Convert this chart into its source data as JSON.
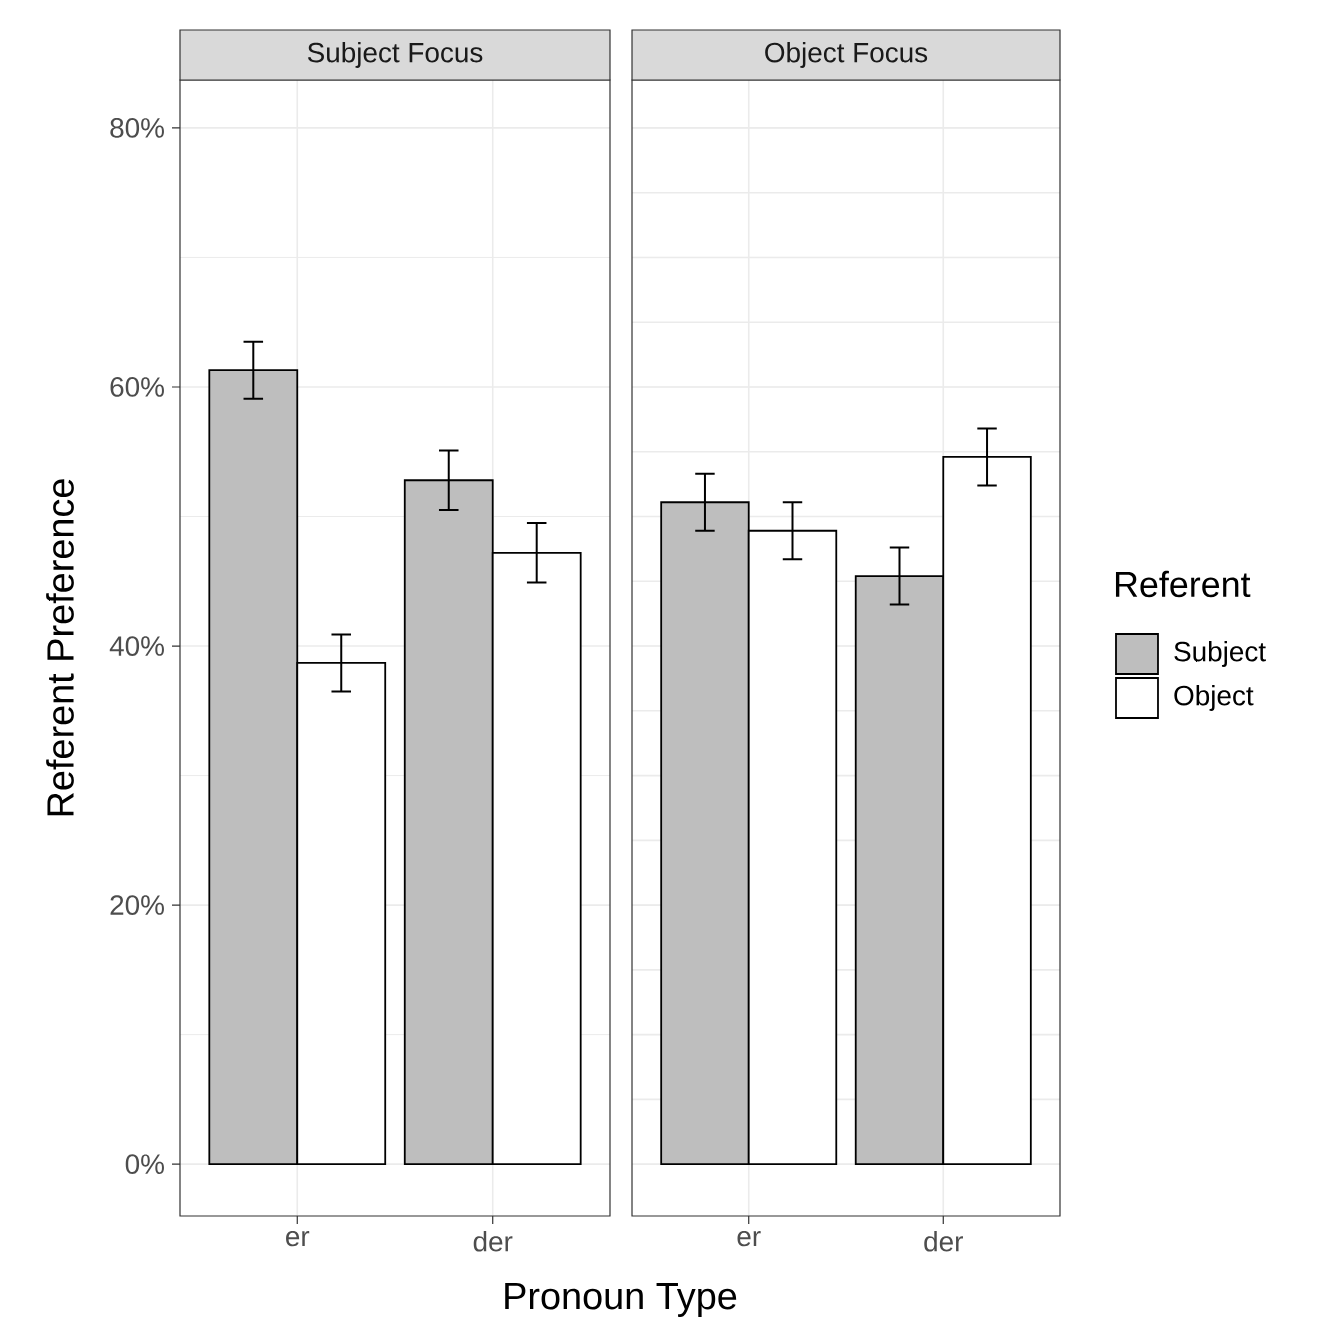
{
  "chart_data": [
    {
      "type": "bar",
      "title": "Subject Focus",
      "xlabel": "Pronoun Type",
      "ylabel": "Referent Preference",
      "legend_title": "Referent",
      "legend": "right",
      "grid": true,
      "categories": [
        "er",
        "der"
      ],
      "ylim": [
        -4,
        83.7
      ],
      "yticks": [
        {
          "value": 0,
          "label": "0%"
        },
        {
          "value": 10,
          "label": null
        },
        {
          "value": 20,
          "label": "20%"
        },
        {
          "value": 30,
          "label": null
        },
        {
          "value": 40,
          "label": "40%"
        },
        {
          "value": 50,
          "label": null
        },
        {
          "value": 60,
          "label": "60%"
        },
        {
          "value": 70,
          "label": null
        },
        {
          "value": 80,
          "label": "80%"
        }
      ],
      "series": [
        {
          "name": "Subject",
          "color": "#bebebe",
          "values": [
            61.3,
            52.8
          ],
          "errors": [
            2.2,
            2.3
          ]
        },
        {
          "name": "Object",
          "color": "#ffffff",
          "values": [
            38.7,
            47.2
          ],
          "errors": [
            2.2,
            2.3
          ]
        }
      ]
    },
    {
      "type": "bar",
      "title": "Object Focus",
      "grid": true,
      "tick_labels": "x",
      "categories": [
        "er",
        "der"
      ],
      "ylim": [
        -4,
        83.7
      ],
      "yticks": [
        {
          "value": 0,
          "label": null
        },
        {
          "value": 10,
          "label": null
        },
        {
          "value": 20,
          "label": null
        },
        {
          "value": 30,
          "label": null
        },
        {
          "value": 40,
          "label": null
        },
        {
          "value": 50,
          "label": null
        },
        {
          "value": 60,
          "label": null
        },
        {
          "value": 70,
          "label": null
        },
        {
          "value": 80,
          "label": null
        }
      ],
      "series": [
        {
          "color": "#bebebe",
          "values": [
            51.1,
            45.4
          ],
          "errors": [
            2.2,
            2.2
          ]
        },
        {
          "color": "#ffffff",
          "values": [
            48.9,
            54.6
          ],
          "errors": [
            2.2,
            2.2
          ]
        }
      ]
    }
  ]
}
